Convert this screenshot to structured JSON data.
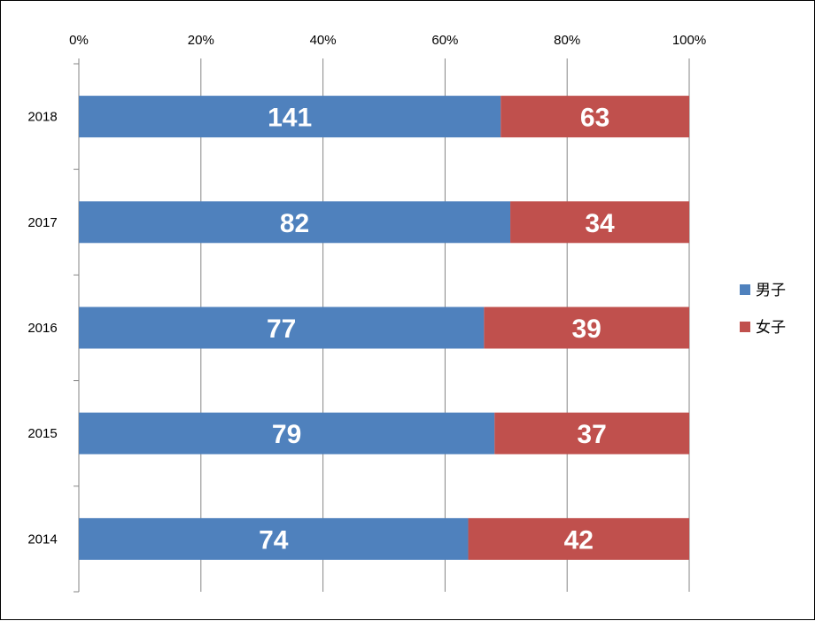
{
  "chart_data": {
    "type": "bar",
    "orientation": "horizontal",
    "stacking": "percent",
    "title": "",
    "xlabel": "",
    "ylabel": "",
    "xlim": [
      0,
      100
    ],
    "x_ticks": [
      "0%",
      "20%",
      "40%",
      "60%",
      "80%",
      "100%"
    ],
    "grid": true,
    "legend_position": "right",
    "categories": [
      "2018",
      "2017",
      "2016",
      "2015",
      "2014"
    ],
    "series": [
      {
        "name": "男子",
        "color": "#4F81BD",
        "values": [
          141,
          82,
          77,
          79,
          74
        ]
      },
      {
        "name": "女子",
        "color": "#C0504D",
        "values": [
          63,
          34,
          39,
          37,
          42
        ]
      }
    ]
  }
}
